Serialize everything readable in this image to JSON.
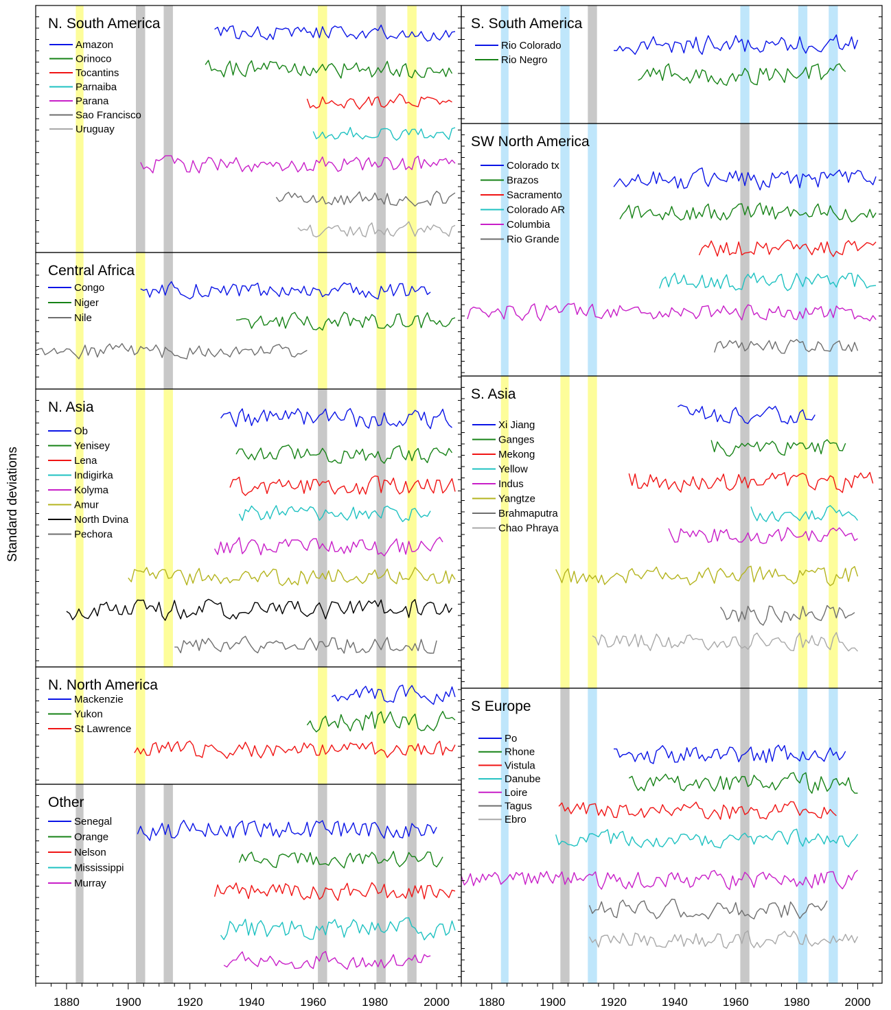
{
  "figure": {
    "ylabel": "Standard deviations",
    "colors": {
      "blue": "#0a14e6",
      "green": "#168216",
      "red": "#f01414",
      "cyan": "#1ec1c1",
      "magenta": "#c81ec8",
      "olive": "#b4b41e",
      "black": "#000000",
      "darkgray": "#6e6e6e",
      "lightgray": "#a8a8a8",
      "band_yellow": "#fdfd9a",
      "band_gray": "#c8c8c8",
      "band_lightblue": "#bfe6fb"
    }
  },
  "chart_data": [
    {
      "type": "line",
      "title": "N. South America",
      "xlim": [
        1870,
        2008
      ],
      "x_ticks": [
        "1880",
        "1900",
        "1920",
        "1940",
        "1960",
        "1980",
        "2000"
      ],
      "bands": [
        {
          "range": [
            1883,
            1885.5
          ],
          "color": "yellow"
        },
        {
          "range": [
            1902.5,
            1905.5
          ],
          "color": "gray"
        },
        {
          "range": [
            1911.5,
            1914.5
          ],
          "color": "gray"
        },
        {
          "range": [
            1961.5,
            1964.5
          ],
          "color": "yellow"
        },
        {
          "range": [
            1980.5,
            1983.5
          ],
          "color": "gray"
        },
        {
          "range": [
            1990.5,
            1993.5
          ],
          "color": "yellow"
        }
      ],
      "series": [
        {
          "name": "Amazon",
          "color": "blue"
        },
        {
          "name": "Orinoco",
          "color": "green"
        },
        {
          "name": "Tocantins",
          "color": "red"
        },
        {
          "name": "Parnaiba",
          "color": "cyan"
        },
        {
          "name": "Parana",
          "color": "magenta"
        },
        {
          "name": "Sao Francisco",
          "color": "darkgray"
        },
        {
          "name": "Uruguay",
          "color": "lightgray"
        }
      ]
    },
    {
      "type": "line",
      "title": "Central Africa",
      "xlim": [
        1870,
        2008
      ],
      "x_ticks": [
        "1880",
        "1900",
        "1920",
        "1940",
        "1960",
        "1980",
        "2000"
      ],
      "bands": [
        {
          "range": [
            1883,
            1885.5
          ],
          "color": "yellow"
        },
        {
          "range": [
            1902.5,
            1905.5
          ],
          "color": "yellow"
        },
        {
          "range": [
            1911.5,
            1914.5
          ],
          "color": "gray"
        },
        {
          "range": [
            1961.5,
            1964.5
          ],
          "color": "yellow"
        },
        {
          "range": [
            1980.5,
            1983.5
          ],
          "color": "yellow"
        },
        {
          "range": [
            1990.5,
            1993.5
          ],
          "color": "yellow"
        }
      ],
      "series": [
        {
          "name": "Congo",
          "color": "blue"
        },
        {
          "name": "Niger",
          "color": "green"
        },
        {
          "name": "Nile",
          "color": "darkgray"
        }
      ]
    },
    {
      "type": "line",
      "title": "N. Asia",
      "xlim": [
        1870,
        2008
      ],
      "x_ticks": [
        "1880",
        "1900",
        "1920",
        "1940",
        "1960",
        "1980",
        "2000"
      ],
      "bands": [
        {
          "range": [
            1883,
            1885.5
          ],
          "color": "yellow"
        },
        {
          "range": [
            1902.5,
            1905.5
          ],
          "color": "yellow"
        },
        {
          "range": [
            1911.5,
            1914.5
          ],
          "color": "yellow"
        },
        {
          "range": [
            1961.5,
            1964.5
          ],
          "color": "gray"
        },
        {
          "range": [
            1980.5,
            1983.5
          ],
          "color": "gray"
        },
        {
          "range": [
            1990.5,
            1993.5
          ],
          "color": "yellow"
        }
      ],
      "series": [
        {
          "name": "Ob",
          "color": "blue"
        },
        {
          "name": "Yenisey",
          "color": "green"
        },
        {
          "name": "Lena",
          "color": "red"
        },
        {
          "name": "Indigirka",
          "color": "cyan"
        },
        {
          "name": "Kolyma",
          "color": "magenta"
        },
        {
          "name": "Amur",
          "color": "olive"
        },
        {
          "name": "North Dvina",
          "color": "black"
        },
        {
          "name": "Pechora",
          "color": "darkgray"
        }
      ]
    },
    {
      "type": "line",
      "title": "N. North America",
      "xlim": [
        1870,
        2008
      ],
      "x_ticks": [
        "1880",
        "1900",
        "1920",
        "1940",
        "1960",
        "1980",
        "2000"
      ],
      "bands": [
        {
          "range": [
            1883,
            1885.5
          ],
          "color": "yellow"
        },
        {
          "range": [
            1902.5,
            1905.5
          ],
          "color": "yellow"
        },
        {
          "range": [
            1961.5,
            1964.5
          ],
          "color": "yellow"
        },
        {
          "range": [
            1980.5,
            1983.5
          ],
          "color": "yellow"
        },
        {
          "range": [
            1990.5,
            1993.5
          ],
          "color": "yellow"
        }
      ],
      "series": [
        {
          "name": "Mackenzie",
          "color": "blue"
        },
        {
          "name": "Yukon",
          "color": "green"
        },
        {
          "name": "St Lawrence",
          "color": "red"
        }
      ]
    },
    {
      "type": "line",
      "title": "Other",
      "xlim": [
        1870,
        2008
      ],
      "x_ticks": [
        "1880",
        "1900",
        "1920",
        "1940",
        "1960",
        "1980",
        "2000"
      ],
      "bands": [
        {
          "range": [
            1883,
            1885.5
          ],
          "color": "gray"
        },
        {
          "range": [
            1902.5,
            1905.5
          ],
          "color": "gray"
        },
        {
          "range": [
            1911.5,
            1914.5
          ],
          "color": "gray"
        },
        {
          "range": [
            1961.5,
            1964.5
          ],
          "color": "gray"
        },
        {
          "range": [
            1980.5,
            1983.5
          ],
          "color": "gray"
        },
        {
          "range": [
            1990.5,
            1993.5
          ],
          "color": "gray"
        }
      ],
      "series": [
        {
          "name": "Senegal",
          "color": "blue"
        },
        {
          "name": "Orange",
          "color": "green"
        },
        {
          "name": "Nelson",
          "color": "red"
        },
        {
          "name": "Mississippi",
          "color": "cyan"
        },
        {
          "name": "Murray",
          "color": "magenta"
        }
      ]
    },
    {
      "type": "line",
      "title": "S. South America",
      "xlim": [
        1870,
        2008
      ],
      "x_ticks": [
        "1880",
        "1900",
        "1920",
        "1940",
        "1960",
        "1980",
        "2000"
      ],
      "bands": [
        {
          "range": [
            1883,
            1885.5
          ],
          "color": "lightblue"
        },
        {
          "range": [
            1902.5,
            1905.5
          ],
          "color": "lightblue"
        },
        {
          "range": [
            1911.5,
            1914.5
          ],
          "color": "gray"
        },
        {
          "range": [
            1961.5,
            1964.5
          ],
          "color": "lightblue"
        },
        {
          "range": [
            1980.5,
            1983.5
          ],
          "color": "lightblue"
        },
        {
          "range": [
            1990.5,
            1993.5
          ],
          "color": "lightblue"
        }
      ],
      "series": [
        {
          "name": "Rio Colorado",
          "color": "blue"
        },
        {
          "name": "Rio Negro",
          "color": "green"
        }
      ]
    },
    {
      "type": "line",
      "title": "SW North America",
      "xlim": [
        1870,
        2008
      ],
      "x_ticks": [
        "1880",
        "1900",
        "1920",
        "1940",
        "1960",
        "1980",
        "2000"
      ],
      "bands": [
        {
          "range": [
            1883,
            1885.5
          ],
          "color": "lightblue"
        },
        {
          "range": [
            1902.5,
            1905.5
          ],
          "color": "lightblue"
        },
        {
          "range": [
            1911.5,
            1914.5
          ],
          "color": "lightblue"
        },
        {
          "range": [
            1961.5,
            1964.5
          ],
          "color": "gray"
        },
        {
          "range": [
            1980.5,
            1983.5
          ],
          "color": "lightblue"
        },
        {
          "range": [
            1990.5,
            1993.5
          ],
          "color": "lightblue"
        }
      ],
      "series": [
        {
          "name": "Colorado tx",
          "color": "blue"
        },
        {
          "name": "Brazos",
          "color": "green"
        },
        {
          "name": "Sacramento",
          "color": "red"
        },
        {
          "name": "Colorado AR",
          "color": "cyan"
        },
        {
          "name": "Columbia",
          "color": "magenta"
        },
        {
          "name": "Rio Grande",
          "color": "darkgray"
        }
      ]
    },
    {
      "type": "line",
      "title": "S. Asia",
      "xlim": [
        1870,
        2008
      ],
      "x_ticks": [
        "1880",
        "1900",
        "1920",
        "1940",
        "1960",
        "1980",
        "2000"
      ],
      "bands": [
        {
          "range": [
            1883,
            1885.5
          ],
          "color": "yellow"
        },
        {
          "range": [
            1902.5,
            1905.5
          ],
          "color": "yellow"
        },
        {
          "range": [
            1911.5,
            1914.5
          ],
          "color": "yellow"
        },
        {
          "range": [
            1961.5,
            1964.5
          ],
          "color": "gray"
        },
        {
          "range": [
            1980.5,
            1983.5
          ],
          "color": "yellow"
        },
        {
          "range": [
            1990.5,
            1993.5
          ],
          "color": "yellow"
        }
      ],
      "series": [
        {
          "name": "Xi Jiang",
          "color": "blue"
        },
        {
          "name": "Ganges",
          "color": "green"
        },
        {
          "name": "Mekong",
          "color": "red"
        },
        {
          "name": "Yellow",
          "color": "cyan"
        },
        {
          "name": "Indus",
          "color": "magenta"
        },
        {
          "name": "Yangtze",
          "color": "olive"
        },
        {
          "name": "Brahmaputra",
          "color": "darkgray"
        },
        {
          "name": "Chao Phraya",
          "color": "lightgray"
        }
      ]
    },
    {
      "type": "line",
      "title": "S Europe",
      "xlim": [
        1870,
        2008
      ],
      "x_ticks": [
        "1880",
        "1900",
        "1920",
        "1940",
        "1960",
        "1980",
        "2000"
      ],
      "bands": [
        {
          "range": [
            1883,
            1885.5
          ],
          "color": "lightblue"
        },
        {
          "range": [
            1902.5,
            1905.5
          ],
          "color": "gray"
        },
        {
          "range": [
            1911.5,
            1914.5
          ],
          "color": "lightblue"
        },
        {
          "range": [
            1961.5,
            1964.5
          ],
          "color": "gray"
        },
        {
          "range": [
            1980.5,
            1983.5
          ],
          "color": "lightblue"
        },
        {
          "range": [
            1990.5,
            1993.5
          ],
          "color": "lightblue"
        }
      ],
      "series": [
        {
          "name": "Po",
          "color": "blue"
        },
        {
          "name": "Rhone",
          "color": "green"
        },
        {
          "name": "Vistula",
          "color": "red"
        },
        {
          "name": "Danube",
          "color": "cyan"
        },
        {
          "name": "Loire",
          "color": "magenta"
        },
        {
          "name": "Tagus",
          "color": "darkgray"
        },
        {
          "name": "Ebro",
          "color": "lightgray"
        }
      ]
    }
  ]
}
